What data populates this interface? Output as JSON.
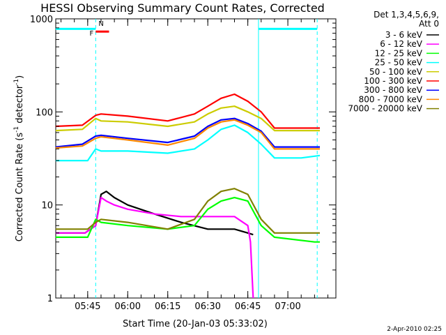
{
  "chart_data": {
    "type": "line",
    "title": "HESSI Observing Summary Count Rates, Corrected",
    "xlabel": "Start Time (20-Jan-03 05:33:02)",
    "ylabel": "Corrected Count Rate (s⁻¹ detector⁻¹)",
    "ylabel_parts": {
      "pre": "Corrected Count Rate (s",
      "sup1": "-1",
      "mid": " detector",
      "sup2": "-1",
      "post": ")"
    },
    "y_scale": "log",
    "ylim": [
      1,
      1000
    ],
    "xlim": [
      "05:33:02",
      "07:18:00"
    ],
    "xticks": [
      "05:45",
      "06:00",
      "06:15",
      "06:30",
      "06:45",
      "07:00"
    ],
    "yticks": [
      "1",
      "10",
      "100",
      "1000"
    ],
    "grid": false,
    "legend_header": [
      "Det 1,3,4,5,6,9,",
      "Att 0"
    ],
    "legend_position": "right",
    "timestamp": "2-Apr-2010 02:25",
    "series": [
      {
        "name": "3 - 6 keV",
        "color": "#000000",
        "points": [
          [
            "05:33",
            5
          ],
          [
            "05:44",
            5
          ],
          [
            "05:48",
            6
          ],
          [
            "05:50",
            13
          ],
          [
            "05:52",
            14
          ],
          [
            "05:55",
            12
          ],
          [
            "06:00",
            10
          ],
          [
            "06:10",
            8
          ],
          [
            "06:20",
            6.5
          ],
          [
            "06:30",
            5.5
          ],
          [
            "06:40",
            5.5
          ],
          [
            "06:45",
            5
          ],
          [
            "06:47",
            4.8
          ]
        ]
      },
      {
        "name": "6 - 12 keV",
        "color": "#ff00ff",
        "points": [
          [
            "05:33",
            5
          ],
          [
            "05:44",
            5
          ],
          [
            "05:48",
            6
          ],
          [
            "05:50",
            12
          ],
          [
            "05:52",
            11
          ],
          [
            "05:55",
            10
          ],
          [
            "06:00",
            9
          ],
          [
            "06:10",
            8
          ],
          [
            "06:20",
            7.5
          ],
          [
            "06:30",
            7.5
          ],
          [
            "06:40",
            7.5
          ],
          [
            "06:45",
            6
          ],
          [
            "06:46",
            4
          ],
          [
            "06:47",
            1
          ]
        ]
      },
      {
        "name": "12 - 25 keV",
        "color": "#00ff00",
        "points": [
          [
            "05:33",
            4.5
          ],
          [
            "05:45",
            4.5
          ],
          [
            "05:48",
            7
          ],
          [
            "05:50",
            6.5
          ],
          [
            "06:00",
            6
          ],
          [
            "06:15",
            5.5
          ],
          [
            "06:25",
            6
          ],
          [
            "06:30",
            9
          ],
          [
            "06:35",
            11
          ],
          [
            "06:40",
            12
          ],
          [
            "06:45",
            11
          ],
          [
            "06:50",
            6
          ],
          [
            "06:55",
            4.5
          ],
          [
            "07:10",
            4
          ],
          [
            "07:12",
            4
          ]
        ]
      },
      {
        "name": "25 - 50 keV",
        "color": "#00ffff",
        "points": [
          [
            "05:33",
            30
          ],
          [
            "05:45",
            30
          ],
          [
            "05:48",
            40
          ],
          [
            "05:50",
            38
          ],
          [
            "06:00",
            38
          ],
          [
            "06:15",
            36
          ],
          [
            "06:25",
            40
          ],
          [
            "06:30",
            50
          ],
          [
            "06:35",
            65
          ],
          [
            "06:40",
            72
          ],
          [
            "06:45",
            60
          ],
          [
            "06:50",
            45
          ],
          [
            "06:55",
            32
          ],
          [
            "07:05",
            32
          ],
          [
            "07:12",
            34
          ]
        ]
      },
      {
        "name": "50 - 100 keV",
        "color": "#cccc00",
        "points": [
          [
            "05:33",
            63
          ],
          [
            "05:43",
            65
          ],
          [
            "05:48",
            85
          ],
          [
            "05:50",
            80
          ],
          [
            "06:00",
            78
          ],
          [
            "06:15",
            70
          ],
          [
            "06:25",
            78
          ],
          [
            "06:30",
            95
          ],
          [
            "06:35",
            110
          ],
          [
            "06:40",
            115
          ],
          [
            "06:45",
            100
          ],
          [
            "06:50",
            85
          ],
          [
            "06:55",
            63
          ],
          [
            "07:12",
            63
          ]
        ]
      },
      {
        "name": "100 - 300 keV",
        "color": "#ff0000",
        "points": [
          [
            "05:33",
            70
          ],
          [
            "05:43",
            72
          ],
          [
            "05:48",
            92
          ],
          [
            "05:50",
            95
          ],
          [
            "06:00",
            90
          ],
          [
            "06:15",
            80
          ],
          [
            "06:25",
            95
          ],
          [
            "06:30",
            115
          ],
          [
            "06:35",
            140
          ],
          [
            "06:40",
            155
          ],
          [
            "06:45",
            130
          ],
          [
            "06:50",
            100
          ],
          [
            "06:55",
            67
          ],
          [
            "07:12",
            67
          ]
        ]
      },
      {
        "name": "300 - 800 keV",
        "color": "#0000ff",
        "points": [
          [
            "05:33",
            42
          ],
          [
            "05:43",
            45
          ],
          [
            "05:48",
            55
          ],
          [
            "05:50",
            56
          ],
          [
            "06:00",
            52
          ],
          [
            "06:15",
            47
          ],
          [
            "06:25",
            55
          ],
          [
            "06:30",
            70
          ],
          [
            "06:35",
            82
          ],
          [
            "06:40",
            85
          ],
          [
            "06:45",
            75
          ],
          [
            "06:50",
            62
          ],
          [
            "06:55",
            42
          ],
          [
            "07:12",
            42
          ]
        ]
      },
      {
        "name": "800 - 7000 keV",
        "color": "#ff8800",
        "points": [
          [
            "05:33",
            41
          ],
          [
            "05:43",
            43
          ],
          [
            "05:48",
            52
          ],
          [
            "05:50",
            54
          ],
          [
            "06:00",
            50
          ],
          [
            "06:15",
            44
          ],
          [
            "06:25",
            52
          ],
          [
            "06:30",
            67
          ],
          [
            "06:35",
            78
          ],
          [
            "06:40",
            82
          ],
          [
            "06:45",
            72
          ],
          [
            "06:50",
            60
          ],
          [
            "06:55",
            40
          ],
          [
            "07:12",
            40
          ]
        ]
      },
      {
        "name": "7000 - 20000 keV",
        "color": "#808000",
        "points": [
          [
            "05:33",
            5.5
          ],
          [
            "05:45",
            5.5
          ],
          [
            "05:48",
            6.5
          ],
          [
            "05:50",
            7
          ],
          [
            "06:00",
            6.5
          ],
          [
            "06:15",
            5.5
          ],
          [
            "06:25",
            7
          ],
          [
            "06:30",
            11
          ],
          [
            "06:35",
            14
          ],
          [
            "06:40",
            15
          ],
          [
            "06:45",
            13
          ],
          [
            "06:50",
            7
          ],
          [
            "06:55",
            5
          ],
          [
            "07:12",
            5
          ]
        ]
      }
    ],
    "annotations": {
      "flag_F": {
        "label": "F",
        "color": "#ff0000",
        "start": "05:48",
        "end": "05:53",
        "level": 730
      },
      "flag_N": {
        "label": "N",
        "color": "#00ffff",
        "level": 900
      },
      "saa_bar_left": {
        "color": "#00ffff",
        "start": "05:33",
        "end": "05:48",
        "level": 780
      },
      "saa_bar_right": {
        "color": "#00ffff",
        "start": "06:49",
        "end": "07:11",
        "level": 780
      },
      "night_solid_lines": [
        "06:49"
      ],
      "night_dashed_lines": [
        "05:48",
        "07:11"
      ]
    }
  }
}
